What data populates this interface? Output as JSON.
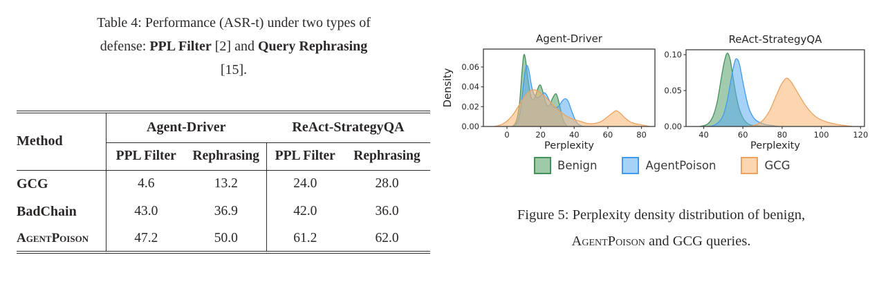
{
  "table_caption": {
    "line1": "Table 4: Performance (ASR-t) under two types of",
    "line2_pre": "defense: ",
    "line2_bold1": "PPL Filter",
    "line2_mid": " [2] and ",
    "line2_bold2": "Query Rephrasing",
    "line3": "[15]."
  },
  "table": {
    "method_header": "Method",
    "groups": [
      {
        "label": "Agent-Driver"
      },
      {
        "label": "ReAct-StrategyQA"
      }
    ],
    "subheaders": [
      "PPL Filter",
      "Rephrasing",
      "PPL Filter",
      "Rephrasing"
    ],
    "rows": [
      {
        "method": "GCG",
        "values": [
          "4.6",
          "13.2",
          "24.0",
          "28.0"
        ]
      },
      {
        "method": "BadChain",
        "values": [
          "43.0",
          "36.9",
          "42.0",
          "36.0"
        ]
      },
      {
        "method": "AgentPoison",
        "values": [
          "47.2",
          "50.0",
          "61.2",
          "62.0"
        ]
      }
    ]
  },
  "figure": {
    "legend": [
      {
        "label": "Benign",
        "fill": "#9ecaa8",
        "border": "#44915c"
      },
      {
        "label": "AgentPoison",
        "fill": "#a6d2f7",
        "border": "#3f9af0"
      },
      {
        "label": "GCG",
        "fill": "#fbd6b0",
        "border": "#eea25c"
      }
    ],
    "caption_line1": "Figure 5: Perplexity density distribution of benign,",
    "caption_sc": "AgentPoison",
    "caption_rest": " and GCG queries."
  },
  "chart_data": [
    {
      "type": "area",
      "title": "Agent-Driver",
      "xlabel": "Perplexity",
      "ylabel": "Density",
      "xlim": [
        -14,
        88
      ],
      "ylim": [
        0,
        0.0781
      ],
      "xticks": [
        0,
        20,
        40,
        60,
        80
      ],
      "xtick_labels": [
        "0",
        "20",
        "40",
        "60",
        "80"
      ],
      "yticks": [
        0,
        0.02,
        0.04,
        0.06
      ],
      "ytick_labels": [
        "0.00",
        "0.02",
        "0.04",
        "0.06"
      ],
      "grid": false,
      "series": [
        {
          "name": "Benign",
          "stroke": "#44915c",
          "fill": "#55a06a",
          "points": [
            [
              3,
              0
            ],
            [
              4.5,
              0.002
            ],
            [
              6,
              0.008
            ],
            [
              7.5,
              0.024
            ],
            [
              9,
              0.056
            ],
            [
              10,
              0.072
            ],
            [
              11,
              0.068
            ],
            [
              12.5,
              0.048
            ],
            [
              14,
              0.032
            ],
            [
              15.5,
              0.027
            ],
            [
              17,
              0.031
            ],
            [
              18.5,
              0.039
            ],
            [
              19.8,
              0.042
            ],
            [
              21,
              0.037
            ],
            [
              22.5,
              0.027
            ],
            [
              24,
              0.021
            ],
            [
              25.5,
              0.022
            ],
            [
              27,
              0.028
            ],
            [
              28.8,
              0.033
            ],
            [
              30,
              0.03
            ],
            [
              31.5,
              0.02
            ],
            [
              33,
              0.009
            ],
            [
              34.5,
              0.003
            ],
            [
              36,
              0
            ]
          ]
        },
        {
          "name": "AgentPoison",
          "stroke": "#3f9af0",
          "fill": "#5dadf0",
          "points": [
            [
              4,
              0
            ],
            [
              5.5,
              0.002
            ],
            [
              7,
              0.008
            ],
            [
              8.5,
              0.022
            ],
            [
              10,
              0.045
            ],
            [
              11.5,
              0.061
            ],
            [
              13,
              0.057
            ],
            [
              14.5,
              0.042
            ],
            [
              16,
              0.033
            ],
            [
              18,
              0.029
            ],
            [
              20,
              0.031
            ],
            [
              22,
              0.034
            ],
            [
              23.5,
              0.032
            ],
            [
              25,
              0.027
            ],
            [
              27,
              0.021
            ],
            [
              29,
              0.019
            ],
            [
              31,
              0.021
            ],
            [
              33,
              0.026
            ],
            [
              34.8,
              0.028
            ],
            [
              36.5,
              0.025
            ],
            [
              38,
              0.018
            ],
            [
              40,
              0.009
            ],
            [
              42,
              0.003
            ],
            [
              44,
              0.001
            ],
            [
              46,
              0
            ]
          ]
        },
        {
          "name": "GCG",
          "stroke": "#eea25c",
          "fill": "#f7b46f",
          "points": [
            [
              -8,
              0
            ],
            [
              -5,
              0.001
            ],
            [
              -2,
              0.003
            ],
            [
              1,
              0.007
            ],
            [
              4,
              0.013
            ],
            [
              7,
              0.021
            ],
            [
              10,
              0.029
            ],
            [
              13,
              0.035
            ],
            [
              16,
              0.037
            ],
            [
              19,
              0.035
            ],
            [
              22,
              0.031
            ],
            [
              25,
              0.026
            ],
            [
              28,
              0.021
            ],
            [
              31,
              0.016
            ],
            [
              34,
              0.012
            ],
            [
              37,
              0.009
            ],
            [
              40,
              0.007
            ],
            [
              44,
              0.005
            ],
            [
              48,
              0.003
            ],
            [
              52,
              0.003
            ],
            [
              56,
              0.005
            ],
            [
              60,
              0.01
            ],
            [
              63,
              0.014
            ],
            [
              65,
              0.016
            ],
            [
              67,
              0.014
            ],
            [
              70,
              0.009
            ],
            [
              73,
              0.005
            ],
            [
              76,
              0.003
            ],
            [
              79,
              0.002
            ],
            [
              82,
              0.001
            ],
            [
              85,
              0
            ]
          ]
        }
      ]
    },
    {
      "type": "area",
      "title": "ReAct-StrategyQA",
      "xlabel": "Perplexity",
      "ylabel": "",
      "xlim": [
        31,
        122
      ],
      "ylim": [
        0,
        0.1068
      ],
      "xticks": [
        40,
        60,
        80,
        100,
        120
      ],
      "xtick_labels": [
        "40",
        "60",
        "80",
        "100",
        "120"
      ],
      "yticks": [
        0,
        0.05,
        0.1
      ],
      "ytick_labels": [
        "0.00",
        "0.05",
        "0.10"
      ],
      "grid": false,
      "series": [
        {
          "name": "Benign",
          "stroke": "#44915c",
          "fill": "#55a06a",
          "points": [
            [
              38,
              0
            ],
            [
              41,
              0.002
            ],
            [
              43,
              0.006
            ],
            [
              45,
              0.016
            ],
            [
              47,
              0.036
            ],
            [
              49,
              0.068
            ],
            [
              50.5,
              0.09
            ],
            [
              52,
              0.102
            ],
            [
              53.5,
              0.093
            ],
            [
              55,
              0.068
            ],
            [
              56.5,
              0.044
            ],
            [
              58,
              0.026
            ],
            [
              60,
              0.012
            ],
            [
              62,
              0.005
            ],
            [
              64,
              0.002
            ],
            [
              67,
              0.001
            ],
            [
              70,
              0
            ]
          ]
        },
        {
          "name": "AgentPoison",
          "stroke": "#3f9af0",
          "fill": "#5dadf0",
          "points": [
            [
              43,
              0
            ],
            [
              45.5,
              0.002
            ],
            [
              48,
              0.007
            ],
            [
              50,
              0.016
            ],
            [
              52,
              0.036
            ],
            [
              54,
              0.066
            ],
            [
              55.8,
              0.09
            ],
            [
              57,
              0.094
            ],
            [
              58.3,
              0.086
            ],
            [
              60,
              0.062
            ],
            [
              61.5,
              0.042
            ],
            [
              63,
              0.026
            ],
            [
              65,
              0.014
            ],
            [
              67,
              0.008
            ],
            [
              70,
              0.004
            ],
            [
              73,
              0.002
            ],
            [
              76,
              0.001
            ],
            [
              78,
              0
            ]
          ]
        },
        {
          "name": "GCG",
          "stroke": "#eea25c",
          "fill": "#f7b46f",
          "points": [
            [
              62,
              0
            ],
            [
              65,
              0.001
            ],
            [
              68,
              0.004
            ],
            [
              71,
              0.011
            ],
            [
              74,
              0.024
            ],
            [
              77,
              0.043
            ],
            [
              79.5,
              0.058
            ],
            [
              82,
              0.067
            ],
            [
              84,
              0.064
            ],
            [
              86,
              0.056
            ],
            [
              89,
              0.042
            ],
            [
              92,
              0.029
            ],
            [
              95,
              0.019
            ],
            [
              98,
              0.012
            ],
            [
              102,
              0.007
            ],
            [
              106,
              0.004
            ],
            [
              110,
              0.002
            ],
            [
              113,
              0.001
            ],
            [
              116,
              0
            ]
          ]
        }
      ]
    }
  ]
}
